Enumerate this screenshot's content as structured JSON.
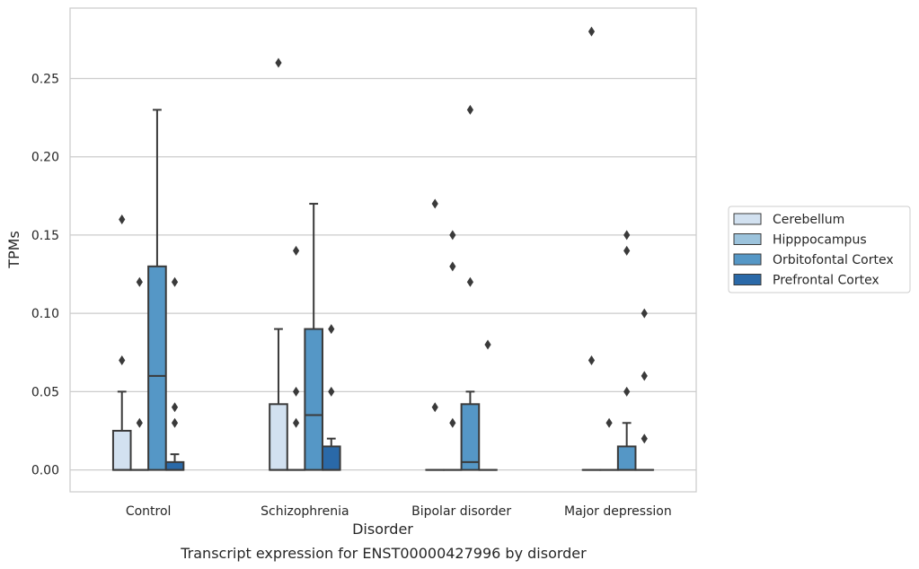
{
  "chart_data": {
    "type": "box",
    "title": "Transcript expression for ENST00000427996 by disorder",
    "xlabel": "Disorder",
    "ylabel": "TPMs",
    "categories": [
      "Control",
      "Schizophrenia",
      "Bipolar disorder",
      "Major depression"
    ],
    "ylim": [
      -0.014,
      0.295
    ],
    "yticks": [
      "0.00",
      "0.05",
      "0.10",
      "0.15",
      "0.20",
      "0.25"
    ],
    "grid": true,
    "legend_position": "right",
    "series": [
      {
        "name": "Cerebellum",
        "color": "#d2e1f0",
        "boxes": [
          {
            "q1": 0,
            "median": 0,
            "q3": 0.025,
            "whisker_low": 0,
            "whisker_high": 0.05,
            "outliers": [
              0.07,
              0.16
            ]
          },
          {
            "q1": 0,
            "median": 0,
            "q3": 0.042,
            "whisker_low": 0,
            "whisker_high": 0.09,
            "outliers": [
              0.26
            ]
          },
          {
            "q1": 0,
            "median": 0,
            "q3": 0,
            "whisker_low": 0,
            "whisker_high": 0,
            "outliers": [
              0.04,
              0.17
            ]
          },
          {
            "q1": 0,
            "median": 0,
            "q3": 0,
            "whisker_low": 0,
            "whisker_high": 0,
            "outliers": [
              0.07,
              0.28
            ]
          }
        ]
      },
      {
        "name": "Hipppocampus",
        "color": "#9cc3dc",
        "boxes": [
          {
            "q1": 0,
            "median": 0,
            "q3": 0,
            "whisker_low": 0,
            "whisker_high": 0,
            "outliers": [
              0.03,
              0.12
            ]
          },
          {
            "q1": 0,
            "median": 0,
            "q3": 0,
            "whisker_low": 0,
            "whisker_high": 0,
            "outliers": [
              0.03,
              0.05,
              0.14
            ]
          },
          {
            "q1": 0,
            "median": 0,
            "q3": 0,
            "whisker_low": 0,
            "whisker_high": 0,
            "outliers": [
              0.03,
              0.13,
              0.15
            ]
          },
          {
            "q1": 0,
            "median": 0,
            "q3": 0,
            "whisker_low": 0,
            "whisker_high": 0,
            "outliers": [
              0.03
            ]
          }
        ]
      },
      {
        "name": "Orbitofontal Cortex",
        "color": "#5597c6",
        "boxes": [
          {
            "q1": 0,
            "median": 0.06,
            "q3": 0.13,
            "whisker_low": 0,
            "whisker_high": 0.23,
            "outliers": []
          },
          {
            "q1": 0,
            "median": 0.035,
            "q3": 0.09,
            "whisker_low": 0,
            "whisker_high": 0.17,
            "outliers": []
          },
          {
            "q1": 0,
            "median": 0.005,
            "q3": 0.042,
            "whisker_low": 0,
            "whisker_high": 0.05,
            "outliers": [
              0.12,
              0.23
            ]
          },
          {
            "q1": 0,
            "median": 0,
            "q3": 0.015,
            "whisker_low": 0,
            "whisker_high": 0.03,
            "outliers": [
              0.05,
              0.14,
              0.15
            ]
          }
        ]
      },
      {
        "name": "Prefrontal Cortex",
        "color": "#2a69a8",
        "boxes": [
          {
            "q1": 0,
            "median": 0,
            "q3": 0.005,
            "whisker_low": 0,
            "whisker_high": 0.01,
            "outliers": [
              0.03,
              0.04,
              0.12
            ]
          },
          {
            "q1": 0,
            "median": 0,
            "q3": 0.015,
            "whisker_low": 0,
            "whisker_high": 0.02,
            "outliers": [
              0.05,
              0.09
            ]
          },
          {
            "q1": 0,
            "median": 0,
            "q3": 0,
            "whisker_low": 0,
            "whisker_high": 0,
            "outliers": [
              0.08
            ]
          },
          {
            "q1": 0,
            "median": 0,
            "q3": 0,
            "whisker_low": 0,
            "whisker_high": 0,
            "outliers": [
              0.02,
              0.06,
              0.1
            ]
          }
        ]
      }
    ]
  }
}
